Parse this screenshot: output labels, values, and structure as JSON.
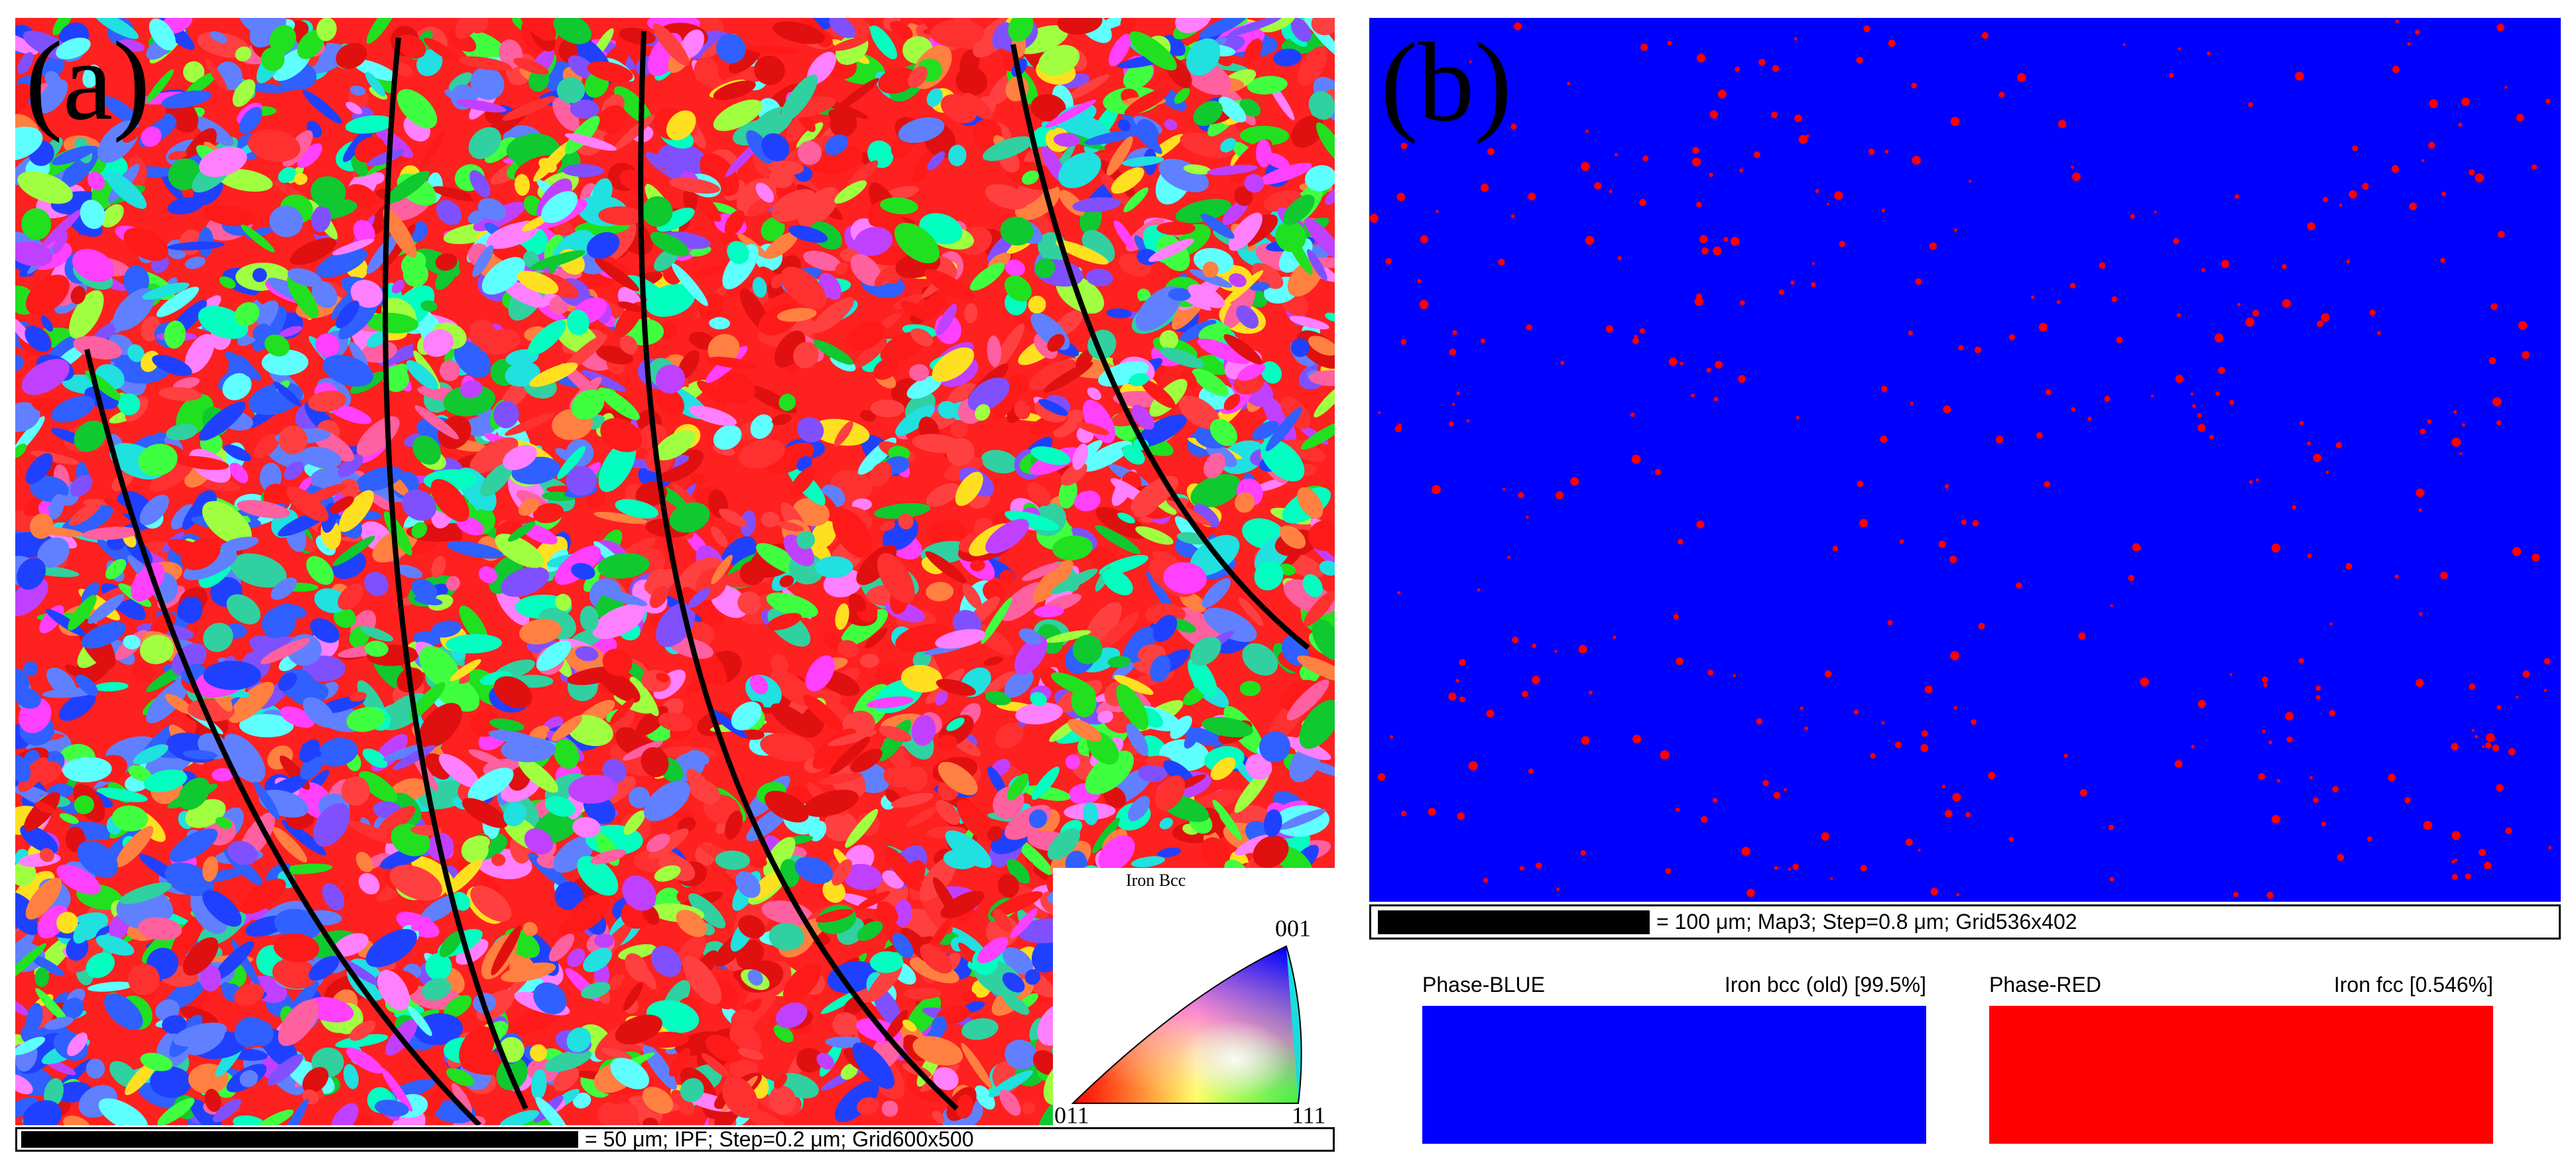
{
  "panel_a": {
    "label": "(a)",
    "scalebar_text": "= 50 μm; IPF; Step=0.2 μm; Grid600x500",
    "legend": {
      "title": "Iron Bcc",
      "corner_001": "001",
      "corner_011": "011",
      "corner_111": "111"
    }
  },
  "panel_b": {
    "label": "(b)",
    "scalebar_text": "= 100 μm; Map3; Step=0.8 μm; Grid536x402",
    "phases": [
      {
        "name": "Phase-BLUE",
        "info": "Iron bcc (old) [99.5%]",
        "color": "#0000ff"
      },
      {
        "name": "Phase-RED",
        "info": "Iron fcc [0.546%]",
        "color": "#ff0000"
      }
    ]
  },
  "colors": {
    "ipf_red": "#ff2020",
    "ipf_green": "#20e020",
    "ipf_blue": "#2040ff",
    "phase_map_background": "#0000ff",
    "phase_map_spots": "#ff0000"
  }
}
